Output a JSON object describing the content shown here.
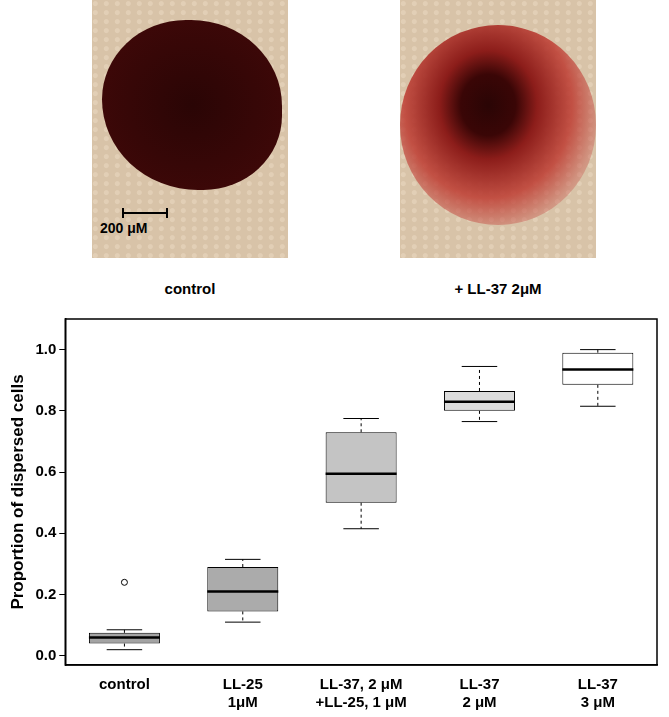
{
  "chart_data": {
    "type": "box",
    "y_label": "Proportion of dispersed cells",
    "categories": [
      "control",
      [
        "LL-25",
        "1μM"
      ],
      [
        "LL-37, 2 μM",
        "+LL-25, 1 μM"
      ],
      [
        "LL-37",
        "2 μM"
      ],
      [
        "LL-37",
        "3 μM"
      ]
    ],
    "boxes": [
      {
        "min": 0.02,
        "q1": 0.04,
        "median": 0.06,
        "q3": 0.075,
        "max": 0.085,
        "outliers": [
          0.24
        ]
      },
      {
        "min": 0.11,
        "q1": 0.145,
        "median": 0.21,
        "q3": 0.29,
        "max": 0.315,
        "outliers": []
      },
      {
        "min": 0.415,
        "q1": 0.5,
        "median": 0.595,
        "q3": 0.73,
        "max": 0.775,
        "outliers": []
      },
      {
        "min": 0.765,
        "q1": 0.8,
        "median": 0.83,
        "q3": 0.865,
        "max": 0.945,
        "outliers": []
      },
      {
        "min": 0.815,
        "q1": 0.885,
        "median": 0.935,
        "q3": 0.99,
        "max": 1.0,
        "outliers": []
      }
    ],
    "colors": [
      "#a3a3a3",
      "#ababab",
      "#c4c4c4",
      "#dcdcdc",
      "#ffffff"
    ],
    "ylim": [
      -0.03,
      1.1
    ],
    "yticks": [
      {
        "value": 0,
        "label": "0.0"
      },
      0.2,
      0.4,
      0.6,
      0.8,
      {
        "value": 1,
        "label": "1.0"
      }
    ],
    "grid": false
  },
  "panels": [
    {
      "caption": "control",
      "scale_bar": "200 μM"
    },
    {
      "caption": "+ LL-37 2μM"
    }
  ]
}
